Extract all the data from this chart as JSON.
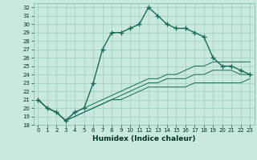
{
  "xlabel": "Humidex (Indice chaleur)",
  "bg_color": "#c8e8e0",
  "line_color": "#1a6b5a",
  "grid_color": "#9ecfbf",
  "x_values": [
    0,
    1,
    2,
    3,
    4,
    5,
    6,
    7,
    8,
    9,
    10,
    11,
    12,
    13,
    14,
    15,
    16,
    17,
    18,
    19,
    20,
    21,
    22,
    23
  ],
  "y_main": [
    21,
    20,
    19.5,
    18.5,
    19.5,
    20,
    23,
    27,
    29,
    29,
    29.5,
    30,
    32,
    31,
    30,
    29.5,
    29.5,
    29,
    28.5,
    26,
    25,
    25,
    24.5,
    24
  ],
  "y_line2": [
    21,
    20,
    19.5,
    18.5,
    19.5,
    20,
    20.5,
    21,
    21.5,
    22,
    22.5,
    23,
    23.5,
    23.5,
    24,
    24,
    24.5,
    25,
    25,
    25.5,
    25.5,
    25.5,
    25.5,
    25.5
  ],
  "y_line3": [
    21,
    20,
    19.5,
    18.5,
    19,
    19.5,
    20,
    20.5,
    21,
    21.5,
    22,
    22.5,
    23,
    23,
    23.5,
    23.5,
    23.5,
    24,
    24,
    24.5,
    24.5,
    24.5,
    24,
    24
  ],
  "y_line4": [
    21,
    20,
    19.5,
    18.5,
    19,
    19.5,
    20,
    20.5,
    21,
    21,
    21.5,
    22,
    22.5,
    22.5,
    22.5,
    22.5,
    22.5,
    23,
    23,
    23,
    23,
    23,
    23,
    23.5
  ],
  "ylim": [
    18,
    32.5
  ],
  "xlim": [
    -0.5,
    23.5
  ],
  "yticks": [
    18,
    19,
    20,
    21,
    22,
    23,
    24,
    25,
    26,
    27,
    28,
    29,
    30,
    31,
    32
  ],
  "xticks": [
    0,
    1,
    2,
    3,
    4,
    5,
    6,
    7,
    8,
    9,
    10,
    11,
    12,
    13,
    14,
    15,
    16,
    17,
    18,
    19,
    20,
    21,
    22,
    23
  ]
}
